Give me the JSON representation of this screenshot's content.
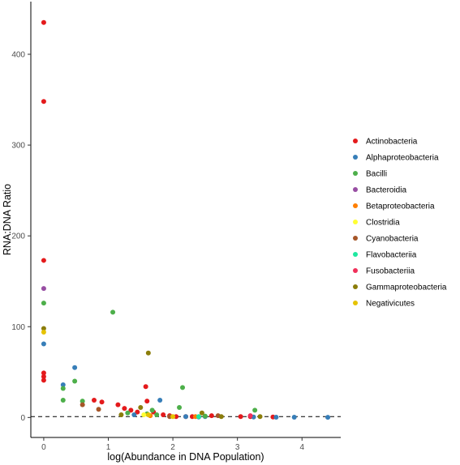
{
  "chart_data": {
    "type": "scatter",
    "title": "",
    "xlabel": "log(Abundance in DNA Population)",
    "ylabel": "RNA:DNA Ratio",
    "xlim": [
      -0.2,
      4.6
    ],
    "ylim": [
      -22,
      458
    ],
    "xticks": [
      0,
      1,
      2,
      3,
      4
    ],
    "yticks": [
      0,
      100,
      200,
      300,
      400
    ],
    "reference_line": {
      "y": 1,
      "style": "dashed"
    },
    "grid": false,
    "legend_position": "right",
    "series": [
      {
        "name": "Actinobacteria",
        "color": "#E41A1C",
        "points": [
          [
            0,
            435
          ],
          [
            0,
            348
          ],
          [
            0,
            173
          ],
          [
            0,
            49
          ],
          [
            0,
            45
          ],
          [
            0,
            41
          ],
          [
            0.78,
            19
          ],
          [
            0.9,
            17
          ],
          [
            1.15,
            14
          ],
          [
            1.25,
            10
          ],
          [
            1.35,
            8
          ],
          [
            1.45,
            6
          ],
          [
            1.58,
            34
          ],
          [
            1.6,
            18
          ],
          [
            1.7,
            6
          ],
          [
            1.85,
            3
          ],
          [
            1.95,
            2
          ],
          [
            2.05,
            1
          ],
          [
            2.2,
            1
          ],
          [
            2.3,
            1
          ],
          [
            2.6,
            2
          ],
          [
            3.05,
            1
          ],
          [
            3.2,
            1
          ],
          [
            3.55,
            0.5
          ]
        ]
      },
      {
        "name": "Alphaproteobacteria",
        "color": "#377EB8",
        "points": [
          [
            0,
            81
          ],
          [
            0.3,
            36
          ],
          [
            0.48,
            55
          ],
          [
            1.4,
            3
          ],
          [
            1.8,
            19
          ],
          [
            2.2,
            1
          ],
          [
            2.4,
            0.5
          ],
          [
            2.5,
            1
          ],
          [
            3.25,
            0.5
          ],
          [
            3.6,
            0.3
          ],
          [
            3.88,
            0.3
          ],
          [
            4.4,
            0.2
          ]
        ]
      },
      {
        "name": "Bacilli",
        "color": "#4DAF4A",
        "points": [
          [
            0,
            126
          ],
          [
            0.3,
            19
          ],
          [
            0.3,
            32
          ],
          [
            0.48,
            40
          ],
          [
            0.6,
            18
          ],
          [
            1.07,
            116
          ],
          [
            1.3,
            5
          ],
          [
            1.6,
            4
          ],
          [
            1.68,
            8
          ],
          [
            1.75,
            3
          ],
          [
            2.1,
            11
          ],
          [
            2.15,
            33
          ],
          [
            2.5,
            1.5
          ],
          [
            3.27,
            8
          ]
        ]
      },
      {
        "name": "Bacteroidia",
        "color": "#984EA3",
        "points": [
          [
            0,
            142
          ]
        ]
      },
      {
        "name": "Betaproteobacteria",
        "color": "#FF7F00",
        "points": [
          [
            1.65,
            2
          ],
          [
            2.35,
            1
          ]
        ]
      },
      {
        "name": "Clostridia",
        "color": "#FFFF33",
        "points": [
          [
            1.55,
            3
          ]
        ]
      },
      {
        "name": "Cyanobacteria",
        "color": "#A65628",
        "points": [
          [
            0.6,
            14
          ],
          [
            0.85,
            9
          ],
          [
            1.95,
            1
          ],
          [
            2.7,
            2
          ]
        ]
      },
      {
        "name": "Flavobacteriia",
        "color": "#1EE8A0",
        "points": [
          [
            2.4,
            1
          ]
        ]
      },
      {
        "name": "Fusobacteriia",
        "color": "#F0305A",
        "points": [
          [
            3.2,
            2
          ]
        ]
      },
      {
        "name": "Gammaproteobacteria",
        "color": "#8B7D0A",
        "points": [
          [
            0,
            98
          ],
          [
            1.62,
            71
          ],
          [
            1.2,
            3
          ],
          [
            1.5,
            11
          ],
          [
            2.45,
            5
          ],
          [
            2.75,
            1
          ],
          [
            3.35,
            1
          ]
        ]
      },
      {
        "name": "Negativicutes",
        "color": "#E6C300",
        "points": [
          [
            0,
            94
          ],
          [
            1.62,
            3
          ],
          [
            2.0,
            1
          ]
        ]
      }
    ]
  }
}
